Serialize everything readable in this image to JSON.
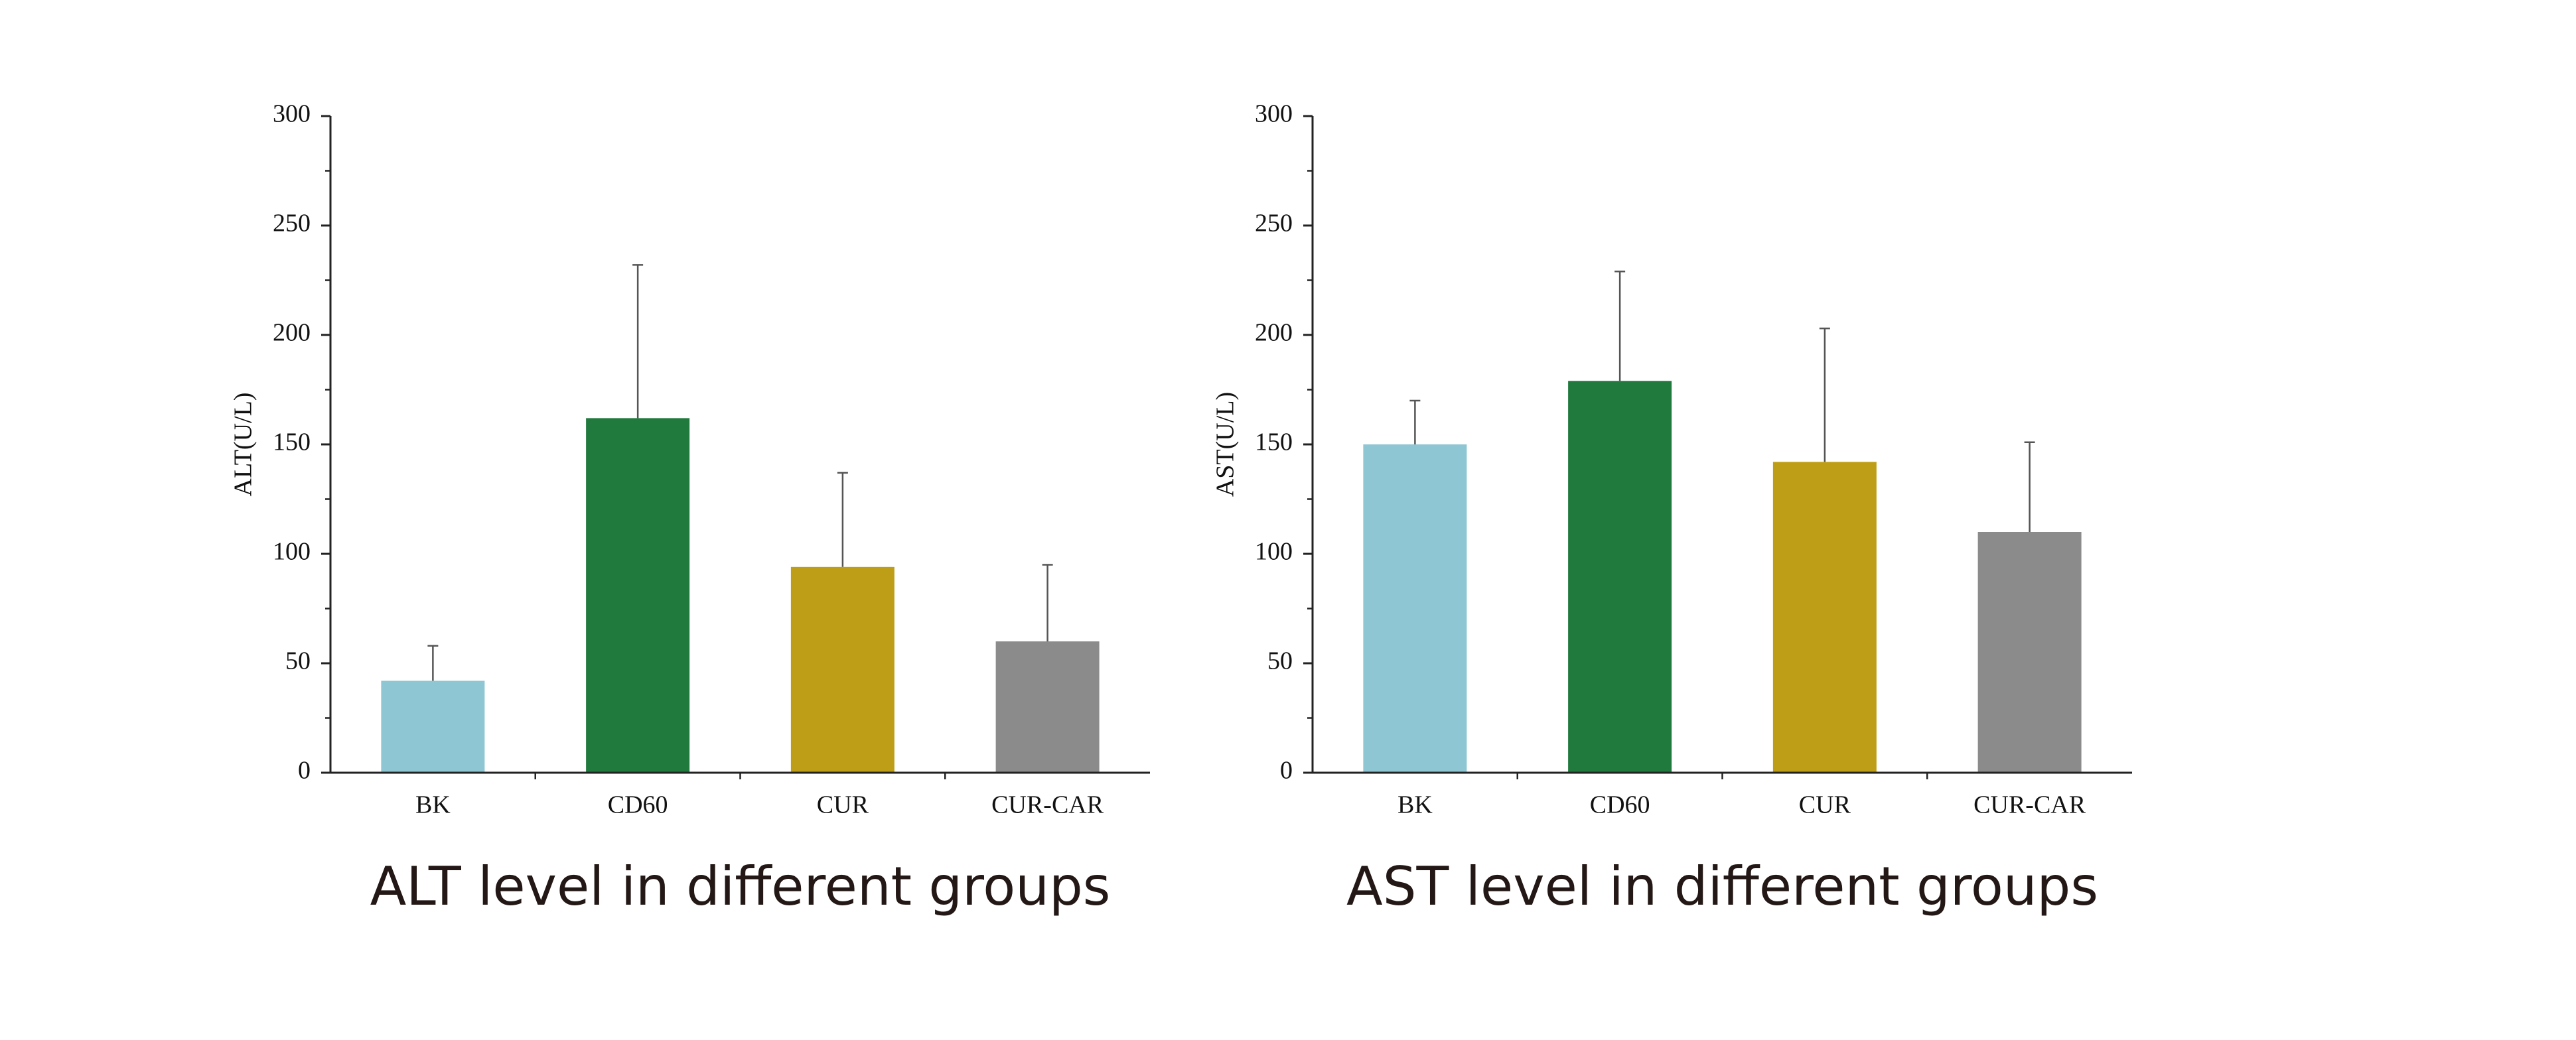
{
  "chart_data": [
    {
      "type": "bar",
      "title": "ALT level in different groups",
      "y_label": "ALT(U/L)",
      "categories": [
        "BK",
        "CD60",
        "CUR",
        "CUR-CAR"
      ],
      "values": [
        42,
        162,
        94,
        60
      ],
      "errors": [
        16,
        70,
        43,
        35
      ],
      "colors": [
        "#8fc6d3",
        "#217a3d",
        "#bf9e17",
        "#8b8b8b"
      ],
      "ylim": [
        0,
        300
      ],
      "yticks": [
        0,
        50,
        100,
        150,
        200,
        250,
        300
      ]
    },
    {
      "type": "bar",
      "title": "AST level in different groups",
      "y_label": "AST(U/L)",
      "categories": [
        "BK",
        "CD60",
        "CUR",
        "CUR-CAR"
      ],
      "values": [
        150,
        179,
        142,
        110
      ],
      "errors": [
        20,
        50,
        61,
        41
      ],
      "colors": [
        "#8fc6d3",
        "#217a3d",
        "#bf9e17",
        "#8b8b8b"
      ],
      "ylim": [
        0,
        300
      ],
      "yticks": [
        0,
        50,
        100,
        150,
        200,
        250,
        300
      ]
    }
  ]
}
